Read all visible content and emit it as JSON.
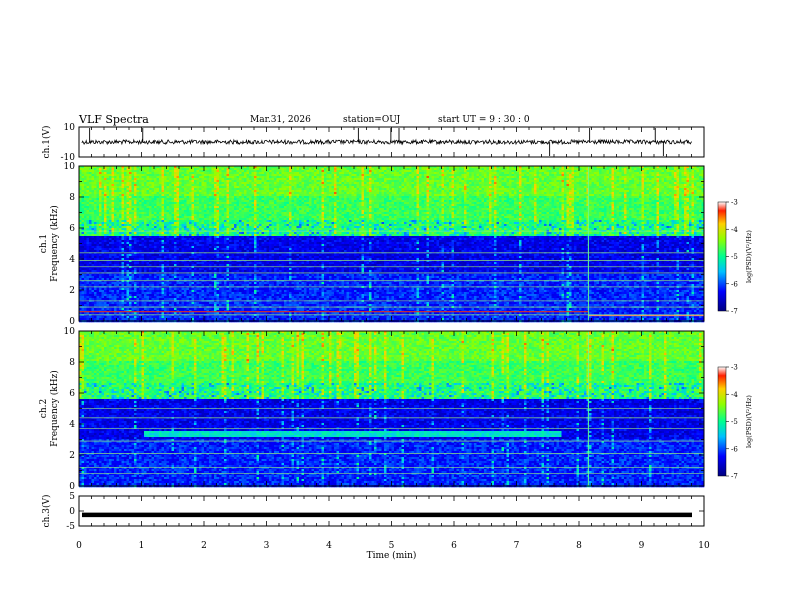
{
  "header": {
    "title": "VLF Spectra",
    "date": "Mar.31, 2026",
    "station": "station=OUJ",
    "start_ut": "start  UT =   9 : 30 : 0"
  },
  "colorbar": {
    "label": "log(PSD)(V²/Hz)",
    "ticks": [
      "-3",
      "-4",
      "-5",
      "-6",
      "-7"
    ],
    "range": [
      -7,
      -3
    ]
  },
  "chart_data": [
    {
      "type": "line",
      "name": "ch.1 waveform",
      "ylabel": "ch.1(V)",
      "ylim": [
        -10,
        10
      ],
      "yticks": [
        "10",
        "-10"
      ],
      "x_range_min": [
        0,
        10
      ],
      "baseline": 0,
      "spikes_min": [
        0.17,
        1.02,
        4.47,
        4.99,
        5.12,
        7.53,
        8.17,
        9.22,
        9.35
      ]
    },
    {
      "type": "heatmap",
      "name": "ch.1 spectrogram",
      "ylabel": "Frequency (kHz)",
      "ylabel_channel": "ch.1",
      "ylim": [
        0,
        10
      ],
      "yticks": [
        "0",
        "2",
        "4",
        "6",
        "8",
        "10"
      ],
      "xlim": [
        0,
        10
      ],
      "noise_floor_khz": 5.5,
      "hum_lines_khz": [
        0.4,
        0.9,
        1.3,
        2.2,
        2.6,
        3.1,
        3.5,
        3.9,
        4.4,
        5.8
      ],
      "event_min": 8.15
    },
    {
      "type": "heatmap",
      "name": "ch.2 spectrogram",
      "ylabel": "Frequency (kHz)",
      "ylabel_channel": "ch.2",
      "ylim": [
        0,
        10
      ],
      "yticks": [
        "0",
        "2",
        "4",
        "6",
        "8",
        "10"
      ],
      "xlim": [
        0,
        10
      ],
      "noise_floor_khz": 5.6,
      "band_khz": [
        3.2,
        3.6
      ],
      "band_min": [
        1.0,
        7.7
      ],
      "hum_lines_khz": [
        0.8,
        1.2,
        2.1,
        2.9,
        3.7,
        4.4,
        5.0
      ],
      "event_min": 8.15
    },
    {
      "type": "line",
      "name": "ch.3 waveform",
      "ylabel": "ch.3(V)",
      "ylim": [
        -5,
        5
      ],
      "yticks": [
        "5",
        "0",
        "-5"
      ],
      "level": -1.3
    }
  ],
  "xaxis": {
    "label": "Time (min)",
    "ticks": [
      "0",
      "1",
      "2",
      "3",
      "4",
      "5",
      "6",
      "7",
      "8",
      "9",
      "10"
    ],
    "range": [
      0,
      10
    ]
  }
}
